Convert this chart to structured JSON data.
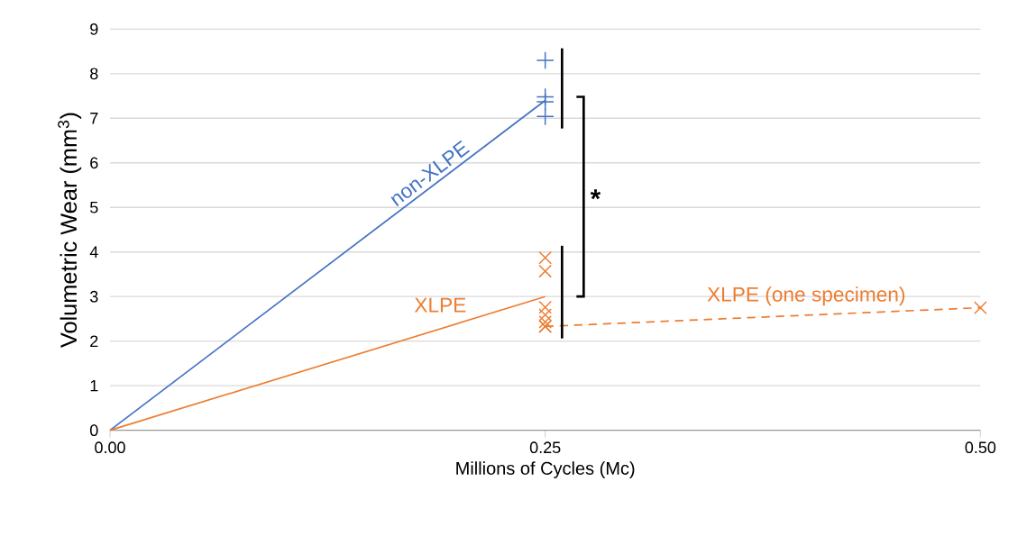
{
  "chart_data": {
    "type": "line",
    "xlabel": "Millions of Cycles (Mc)",
    "ylabel": "Volumetric Wear (mm$^{3}$)",
    "xlim": [
      0,
      0.5
    ],
    "xticks": [
      {
        "value": 0,
        "label": "0.00"
      },
      {
        "value": 0.25,
        "label": "0.25"
      },
      {
        "value": 0.5,
        "label": "0.50"
      }
    ],
    "ylim": [
      0,
      9
    ],
    "yticks": [
      0,
      1,
      2,
      3,
      4,
      5,
      6,
      7,
      8,
      9
    ],
    "grid": "y",
    "series": [
      {
        "name": "non-XLPE",
        "color": "#4472c4",
        "x": [
          0,
          0.25
        ],
        "values": [
          0,
          7.4
        ],
        "line_style": "solid",
        "marker": "none"
      },
      {
        "name": "XLPE",
        "color": "#ed7d31",
        "x": [
          0,
          0.25
        ],
        "values": [
          0,
          3.0
        ],
        "line_style": "solid",
        "marker": "none"
      },
      {
        "type": "scatter",
        "color": "#4472c4",
        "x": [
          0.25,
          0.25,
          0.25,
          0.25
        ],
        "values": [
          8.3,
          7.48,
          7.37,
          7.04
        ],
        "marker": "plus"
      },
      {
        "type": "scatter",
        "color": "#ed7d31",
        "x": [
          0.25,
          0.25,
          0.25,
          0.25,
          0.25,
          0.25
        ],
        "values": [
          3.87,
          3.57,
          2.76,
          2.59,
          2.43,
          2.33
        ],
        "marker": "cross"
      },
      {
        "name": "XLPE (one specimen)",
        "color": "#ed7d31",
        "x": [
          0.25,
          0.5
        ],
        "values": [
          2.33,
          2.75
        ],
        "line_style": "dashed",
        "marker": "cross"
      }
    ],
    "annotations": [
      "*"
    ]
  }
}
